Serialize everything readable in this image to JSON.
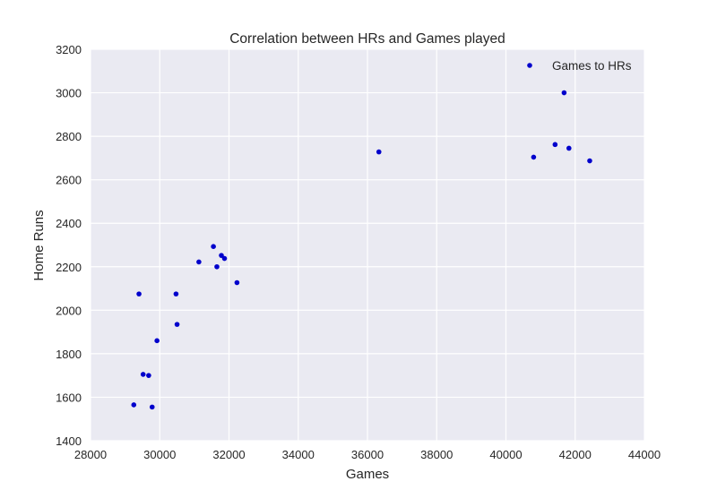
{
  "chart_data": {
    "type": "scatter",
    "title": "Correlation between HRs and Games played",
    "xlabel": "Games",
    "ylabel": "Home Runs",
    "xlim": [
      28000,
      44000
    ],
    "ylim": [
      1400,
      3200
    ],
    "xticks": [
      "28000",
      "30000",
      "32000",
      "34000",
      "36000",
      "38000",
      "40000",
      "42000",
      "44000"
    ],
    "yticks": [
      "1400",
      "1600",
      "1800",
      "2000",
      "2200",
      "2400",
      "2600",
      "2800",
      "3000",
      "3200"
    ],
    "grid": true,
    "legend": {
      "position": "top-right",
      "entries": [
        "Games to HRs"
      ]
    },
    "series": [
      {
        "name": "Games to HRs",
        "color": "#0000cc",
        "points": [
          {
            "x": 29250,
            "y": 1565
          },
          {
            "x": 29400,
            "y": 2075
          },
          {
            "x": 29520,
            "y": 1705
          },
          {
            "x": 29680,
            "y": 1700
          },
          {
            "x": 29780,
            "y": 1555
          },
          {
            "x": 29920,
            "y": 1860
          },
          {
            "x": 30470,
            "y": 2075
          },
          {
            "x": 30500,
            "y": 1935
          },
          {
            "x": 31130,
            "y": 2222
          },
          {
            "x": 31550,
            "y": 2293
          },
          {
            "x": 31650,
            "y": 2200
          },
          {
            "x": 31780,
            "y": 2252
          },
          {
            "x": 31870,
            "y": 2238
          },
          {
            "x": 32230,
            "y": 2127
          },
          {
            "x": 36330,
            "y": 2728
          },
          {
            "x": 40800,
            "y": 2704
          },
          {
            "x": 41420,
            "y": 2762
          },
          {
            "x": 41680,
            "y": 3000
          },
          {
            "x": 41820,
            "y": 2745
          },
          {
            "x": 42420,
            "y": 2687
          }
        ]
      }
    ]
  },
  "colors": {
    "plot_background": "#eaeaf2",
    "grid": "#ffffff",
    "marker": "#0000cc"
  }
}
